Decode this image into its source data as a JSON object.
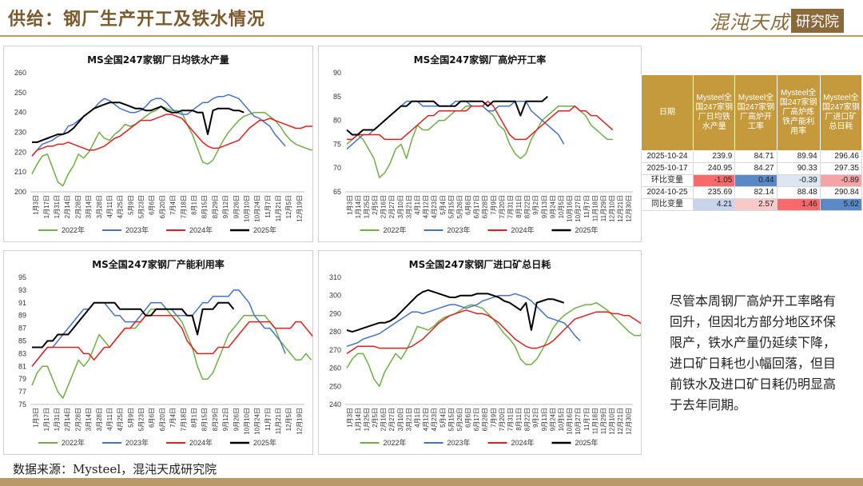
{
  "header": {
    "title": "供给：钢厂生产开工及铁水情况"
  },
  "brand": {
    "name": "混沌天成",
    "badge": "研究院"
  },
  "colors": {
    "accent": "#7a5a2c",
    "table_header": "#c59a3c",
    "series_2022": "#70ad47",
    "series_2023": "#4472c4",
    "series_2024": "#e02020",
    "series_2025": "#000000"
  },
  "table": {
    "headers": [
      "日期",
      "Mysteel全国247家钢厂日均铁水产量",
      "Mysteel全国247家钢厂高炉开工率",
      "Mysteel全国247家钢厂高炉炼铁产能利用率",
      "Mysteel全国247家钢厂进口矿总日耗"
    ],
    "rows": [
      {
        "label": "2025-10-24",
        "values": [
          "239.9",
          "84.71",
          "89.94",
          "296.46"
        ],
        "colors": [
          "",
          "",
          "",
          ""
        ]
      },
      {
        "label": "2025-10-17",
        "values": [
          "240.95",
          "84.27",
          "90.33",
          "297.35"
        ],
        "colors": [
          "",
          "",
          "",
          ""
        ]
      },
      {
        "label": "环比变量",
        "values": [
          "-1.05",
          "0.44",
          "-0.39",
          "-0.89"
        ],
        "colors": [
          "#f8696b",
          "#5a8ac6",
          "#dde4f2",
          "#f5a3a4"
        ]
      },
      {
        "label": "2024-10-25",
        "values": [
          "235.69",
          "82.14",
          "88.48",
          "290.84"
        ],
        "colors": [
          "",
          "",
          "",
          ""
        ]
      },
      {
        "label": "同比变量",
        "values": [
          "4.21",
          "2.57",
          "1.46",
          "5.62"
        ],
        "colors": [
          "#c7d4eb",
          "#f9c9ca",
          "#f8696b",
          "#5a8ac6"
        ]
      }
    ]
  },
  "note": "尽管本周钢厂高炉开工率略有回升，但因北方部分地区环保限产，铁水产量仍延续下降，进口矿日耗也小幅回落，但目前铁水及进口矿日耗仍明显高于去年同期。",
  "source": "数据来源：Mysteel，混沌天成研究院",
  "chart_data": [
    {
      "type": "line",
      "title": "MS全国247家钢厂日均铁水产量",
      "ylim": [
        200,
        260
      ],
      "yticks": [
        200,
        210,
        220,
        230,
        240,
        250,
        260
      ],
      "x_ticks": [
        "1月3日",
        "1月17日",
        "1月31日",
        "2月14日",
        "2月28日",
        "3月14日",
        "3月28日",
        "4月11日",
        "4月25日",
        "5月9日",
        "5月23日",
        "6月6日",
        "6月20日",
        "7月4日",
        "7月18日",
        "8月1日",
        "8月15日",
        "8月29日",
        "9月12日",
        "9月26日",
        "10月10日",
        "10月24日",
        "11月7日",
        "11月21日",
        "12月5日",
        "12月19日"
      ],
      "series": [
        {
          "name": "2022年",
          "values": [
            209,
            214,
            218,
            219,
            212,
            205,
            203,
            209,
            213,
            219,
            217,
            220,
            225,
            230,
            227,
            226,
            229,
            231,
            234,
            233,
            234,
            236,
            238,
            240,
            241,
            243,
            242,
            241,
            241,
            240,
            234,
            229,
            222,
            215,
            214,
            216,
            221,
            226,
            230,
            233,
            236,
            238,
            239,
            240,
            240,
            240,
            238,
            236,
            233,
            229,
            226,
            224,
            223,
            222,
            221,
            222
          ]
        },
        {
          "name": "2023年",
          "values": [
            218,
            221,
            224,
            225,
            226,
            228,
            229,
            233,
            234,
            236,
            238,
            240,
            242,
            245,
            247,
            246,
            244,
            242,
            241,
            240,
            240,
            241,
            243,
            246,
            247,
            247,
            245,
            242,
            240,
            239,
            239,
            241,
            243,
            245,
            245,
            247,
            248,
            248,
            249,
            248,
            247,
            244,
            241,
            238,
            237,
            235,
            233,
            229,
            226,
            223
          ]
        },
        {
          "name": "2024年",
          "values": [
            218,
            221,
            222,
            223,
            223,
            224,
            224,
            225,
            224,
            223,
            222,
            221,
            221,
            222,
            223,
            225,
            227,
            228,
            230,
            232,
            234,
            236,
            236,
            236,
            237,
            238,
            239,
            239,
            238,
            237,
            234,
            231,
            228,
            225,
            223,
            222,
            222,
            223,
            224,
            225,
            226,
            229,
            232,
            234,
            236,
            236,
            237,
            236,
            235,
            234,
            233,
            232,
            232,
            233,
            233,
            233,
            234,
            233,
            232,
            229,
            228
          ]
        },
        {
          "name": "2025年",
          "values": [
            225,
            225,
            226,
            227,
            228,
            229,
            229,
            230,
            232,
            235,
            238,
            240,
            242,
            243,
            244,
            245,
            245,
            245,
            244,
            243,
            242,
            242,
            241,
            241,
            242,
            243,
            241,
            240,
            240,
            241,
            241,
            241,
            240,
            240,
            229,
            241,
            242,
            242,
            242,
            241,
            241,
            240
          ]
        }
      ],
      "legend": "bottom"
    },
    {
      "type": "line",
      "title": "MS全国247家钢厂高炉开工率",
      "ylim": [
        65,
        90
      ],
      "yticks": [
        65,
        70,
        75,
        80,
        85,
        90
      ],
      "x_ticks": [
        "1月3日",
        "1月14日",
        "1月25日",
        "2月5日",
        "2月16日",
        "2月27日",
        "3月10日",
        "3月21日",
        "4月1日",
        "4月12日",
        "4月23日",
        "5月4日",
        "5月15日",
        "5月26日",
        "6月6日",
        "6月17日",
        "6月28日",
        "7月9日",
        "7月20日",
        "7月31日",
        "8月11日",
        "8月22日",
        "9月2日",
        "9月13日",
        "9月24日",
        "10月5日",
        "10月16日",
        "10月27日",
        "11月7日",
        "11月18日",
        "11月29日",
        "12月10日",
        "12月21日",
        "12月30日"
      ],
      "series": [
        {
          "name": "2022年",
          "values": [
            75,
            76,
            77,
            76,
            74,
            72,
            68,
            69,
            71,
            74,
            75,
            72,
            76,
            79,
            78,
            78,
            79,
            80,
            80,
            81,
            82,
            82,
            83,
            83,
            83,
            83,
            82,
            81,
            79,
            78,
            75,
            73,
            72,
            73,
            76,
            78,
            80,
            81,
            82,
            83,
            83,
            83,
            83,
            82,
            81,
            79,
            78,
            77,
            76,
            76
          ]
        },
        {
          "name": "2023年",
          "values": [
            74,
            75,
            76,
            77,
            77,
            78,
            79,
            80,
            81,
            82,
            83,
            84,
            84,
            84,
            83,
            83,
            83,
            83,
            83,
            83,
            84,
            84,
            84,
            83,
            83,
            83,
            82,
            82,
            83,
            83,
            83,
            84,
            84,
            84,
            82,
            81,
            80,
            79,
            78,
            77,
            75
          ]
        },
        {
          "name": "2024年",
          "values": [
            76,
            76,
            77,
            77,
            77,
            77,
            77,
            76,
            76,
            76,
            76,
            77,
            78,
            79,
            80,
            81,
            81,
            82,
            82,
            82,
            82,
            82,
            82,
            83,
            83,
            83,
            84,
            83,
            81,
            79,
            77,
            76,
            76,
            76,
            77,
            78,
            79,
            80,
            81,
            82,
            82,
            82,
            83,
            82,
            82,
            81,
            81,
            80,
            79,
            78
          ]
        },
        {
          "name": "2025年",
          "values": [
            78,
            77,
            77,
            78,
            78,
            78,
            79,
            80,
            81,
            82,
            83,
            83,
            84,
            84,
            84,
            84,
            84,
            83,
            83,
            83,
            83,
            84,
            84,
            84,
            84,
            84,
            83,
            84,
            84,
            84,
            84,
            84,
            81,
            84,
            84,
            84,
            84,
            85
          ]
        }
      ],
      "legend": "bottom"
    },
    {
      "type": "line",
      "title": "MS全国247家钢厂产能利用率",
      "ylim": [
        75,
        95
      ],
      "yticks": [
        75,
        77,
        79,
        81,
        83,
        85,
        87,
        89,
        91,
        93,
        95
      ],
      "x_ticks": [
        "1月3日",
        "1月17日",
        "1月31日",
        "2月14日",
        "2月28日",
        "3月14日",
        "3月28日",
        "4月11日",
        "4月25日",
        "5月9日",
        "5月23日",
        "6月6日",
        "6月20日",
        "7月4日",
        "7月18日",
        "8月1日",
        "8月15日",
        "8月29日",
        "9月12日",
        "9月26日",
        "10月10日",
        "10月24日",
        "11月7日",
        "11月21日",
        "12月5日",
        "12月19日"
      ],
      "series": [
        {
          "name": "2022年",
          "values": [
            78,
            80,
            81,
            81,
            79,
            77,
            76,
            78,
            80,
            82,
            81,
            82,
            84,
            86,
            85,
            84,
            85,
            86,
            87,
            87,
            87,
            88,
            89,
            90,
            90,
            90,
            90,
            89,
            89,
            88,
            86,
            84,
            81,
            79,
            79,
            80,
            82,
            84,
            86,
            87,
            88,
            89,
            89,
            89,
            89,
            89,
            88,
            87,
            85,
            84,
            83,
            82,
            82,
            83,
            82
          ]
        },
        {
          "name": "2023年",
          "values": [
            81,
            82,
            83,
            84,
            84,
            85,
            86,
            87,
            88,
            89,
            90,
            90,
            91,
            91,
            91,
            90,
            89,
            89,
            88,
            88,
            88,
            89,
            90,
            91,
            91,
            91,
            90,
            90,
            89,
            89,
            89,
            89,
            90,
            91,
            91,
            92,
            92,
            92,
            92,
            93,
            93,
            92,
            91,
            89,
            88,
            87,
            87,
            86,
            85,
            83
          ]
        },
        {
          "name": "2024年",
          "values": [
            81,
            82,
            83,
            84,
            84,
            84,
            84,
            84,
            84,
            84,
            83,
            83,
            82,
            83,
            84,
            84,
            85,
            86,
            87,
            87,
            88,
            88,
            89,
            89,
            89,
            89,
            89,
            89,
            88,
            87,
            85,
            84,
            83,
            83,
            83,
            83,
            84,
            84,
            84,
            85,
            86,
            87,
            88,
            88,
            88,
            88,
            88,
            87,
            87,
            87,
            87,
            88,
            88,
            87,
            86,
            85
          ]
        },
        {
          "name": "2025年",
          "values": [
            84,
            84,
            84,
            85,
            85,
            86,
            86,
            86,
            87,
            88,
            89,
            90,
            91,
            91,
            91,
            91,
            91,
            90,
            90,
            90,
            90,
            90,
            89,
            89,
            90,
            90,
            90,
            90,
            90,
            90,
            89,
            89,
            86,
            90,
            90,
            90,
            91,
            91,
            91,
            90
          ]
        }
      ],
      "legend": "bottom"
    },
    {
      "type": "line",
      "title": "MS全国247家钢厂进口矿总日耗",
      "ylim": [
        240,
        310
      ],
      "yticks": [
        240,
        250,
        260,
        270,
        280,
        290,
        300,
        310
      ],
      "x_ticks": [
        "1月3日",
        "1月14日",
        "1月25日",
        "2月5日",
        "2月16日",
        "2月27日",
        "3月10日",
        "3月21日",
        "4月1日",
        "4月12日",
        "4月23日",
        "5月4日",
        "5月15日",
        "5月26日",
        "6月6日",
        "6月17日",
        "6月28日",
        "7月9日",
        "7月20日",
        "7月31日",
        "8月11日",
        "8月22日",
        "9月2日",
        "9月13日",
        "9月24日",
        "10月5日",
        "10月16日",
        "10月27日",
        "11月7日",
        "11月18日",
        "11月29日",
        "12月10日",
        "12月21日",
        "12月30日"
      ],
      "series": [
        {
          "name": "2022年",
          "values": [
            260,
            265,
            268,
            268,
            262,
            254,
            250,
            258,
            263,
            268,
            265,
            270,
            276,
            283,
            282,
            281,
            283,
            286,
            288,
            289,
            290,
            292,
            294,
            295,
            294,
            293,
            290,
            287,
            283,
            279,
            276,
            272,
            265,
            262,
            262,
            265,
            270,
            276,
            282,
            286,
            289,
            291,
            293,
            294,
            295,
            295,
            296,
            294,
            292,
            289,
            286,
            283,
            280,
            278,
            278,
            280,
            279,
            275,
            270
          ]
        },
        {
          "name": "2023年",
          "values": [
            272,
            273,
            274,
            276,
            277,
            278,
            279,
            281,
            283,
            285,
            287,
            289,
            291,
            291,
            290,
            291,
            292,
            293,
            294,
            295,
            295,
            294,
            293,
            294,
            295,
            297,
            298,
            299,
            300,
            300,
            300,
            301,
            300,
            299,
            297,
            294,
            291,
            288,
            287,
            286,
            285,
            282,
            278,
            275
          ]
        },
        {
          "name": "2024年",
          "values": [
            268,
            270,
            272,
            272,
            272,
            272,
            271,
            271,
            271,
            271,
            271,
            271,
            272,
            274,
            276,
            279,
            282,
            285,
            287,
            289,
            290,
            291,
            292,
            291,
            290,
            290,
            289,
            287,
            285,
            282,
            279,
            276,
            274,
            272,
            271,
            271,
            272,
            273,
            275,
            278,
            281,
            284,
            287,
            288,
            289,
            290,
            291,
            291,
            291,
            290,
            290,
            289,
            289,
            287,
            285,
            283
          ]
        },
        {
          "name": "2025年",
          "values": [
            281,
            280,
            281,
            282,
            283,
            284,
            285,
            285,
            286,
            288,
            291,
            294,
            297,
            300,
            302,
            303,
            302,
            301,
            300,
            299,
            299,
            300,
            300,
            300,
            301,
            301,
            301,
            300,
            299,
            297,
            296,
            294,
            292,
            296,
            281,
            296,
            297,
            298,
            298,
            297,
            296
          ]
        }
      ],
      "legend": "bottom"
    }
  ]
}
